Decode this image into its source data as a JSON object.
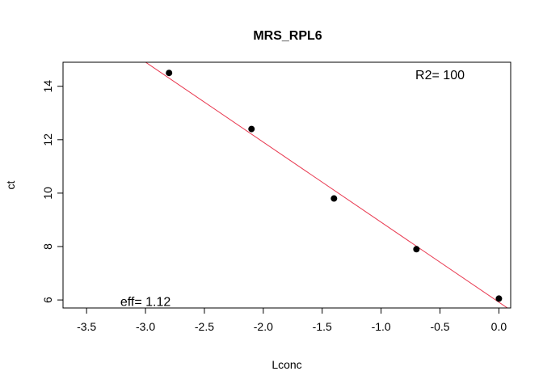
{
  "chart_data": {
    "type": "scatter",
    "title": "MRS_RPL6",
    "xlabel": "Lconc",
    "ylabel": "ct",
    "xlim": [
      -3.7,
      0.1
    ],
    "ylim": [
      5.7,
      14.9
    ],
    "x_ticks": [
      -3.5,
      -3.0,
      -2.5,
      -2.0,
      -1.5,
      -1.0,
      -0.5,
      0.0
    ],
    "x_tick_labels": [
      "-3.5",
      "-3.0",
      "-2.5",
      "-2.0",
      "-1.5",
      "-1.0",
      "-0.5",
      "0.0"
    ],
    "y_ticks": [
      6,
      8,
      10,
      12,
      14
    ],
    "y_tick_labels": [
      "6",
      "8",
      "10",
      "12",
      "14"
    ],
    "points": {
      "x": [
        -2.8,
        -2.1,
        -1.4,
        -0.7,
        0.0
      ],
      "y": [
        14.5,
        12.4,
        9.8,
        7.9,
        6.05
      ]
    },
    "fit_line": {
      "slope": -2.9963,
      "intercept": 5.916,
      "color": "#e8364d"
    },
    "point_color": "#000000",
    "annotations": [
      {
        "text": "R2= 100",
        "x": -0.5,
        "y": 14.45
      },
      {
        "text": "eff= 1.12",
        "x": -3.0,
        "y": 5.95
      }
    ],
    "grid": false,
    "legend": "none"
  }
}
